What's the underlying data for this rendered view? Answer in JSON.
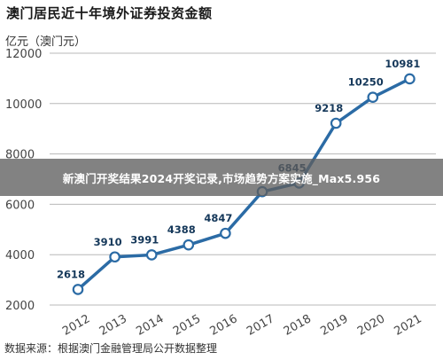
{
  "chart_data": {
    "type": "line",
    "title": "澳门居民近十年境外证券投资金额",
    "ylabel": "亿元（澳门元）",
    "xlabel": "",
    "categories": [
      "2012",
      "2013",
      "2014",
      "2015",
      "2016",
      "2017",
      "2018",
      "2019",
      "2020",
      "2021"
    ],
    "series": [
      {
        "values": [
          2618,
          3910,
          3991,
          4388,
          4847,
          6500,
          6845,
          9218,
          10250,
          10981
        ]
      }
    ],
    "data_labels": [
      "2618",
      "3910",
      "3991",
      "4388",
      "4847",
      "",
      "6845",
      "9218",
      "10250",
      "10981"
    ],
    "y_ticks": [
      "2000",
      "4000",
      "6000",
      "8000",
      "10000",
      "12000"
    ],
    "ylim": [
      2000,
      12000
    ],
    "grid": true,
    "line_color": "#2b6ba5",
    "marker_fill": "#ffffff"
  },
  "source": "数据来源：根据澳门金融管理局公开数据整理",
  "banner": {
    "text": "新澳门开奖结果2024开奖记录,市场趋势方案实施_Max5.956",
    "background": "#5f5f5f"
  }
}
